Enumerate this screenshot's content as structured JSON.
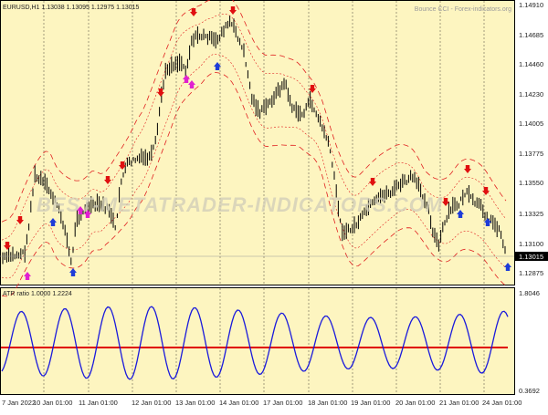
{
  "chart_header": {
    "symbol_info": "EURUSD,H1  1.13038 1.13095 1.12975 1.13015",
    "indicator_brand": "Bounce CCI - Forex-indicators.org",
    "watermark": "BEST-METATRADER-INDICATORS.COM"
  },
  "price_axis": {
    "labels": [
      "1.14910",
      "1.14685",
      "1.14460",
      "1.14230",
      "1.14005",
      "1.13775",
      "1.13550",
      "1.13325",
      "1.13100",
      "1.12875"
    ],
    "current_price": "1.13015"
  },
  "sub_window": {
    "title": "ATR ratio 1.0000 1.2224",
    "labels": [
      "1.8046",
      "0.3692"
    ]
  },
  "time_axis": {
    "labels": [
      "7 Jan 2022",
      "10 Jan 01:00",
      "11 Jan 01:00",
      "12 Jan 01:00",
      "13 Jan 01:00",
      "14 Jan 01:00",
      "17 Jan 01:00",
      "18 Jan 01:00",
      "19 Jan 01:00",
      "20 Jan 01:00",
      "21 Jan 01:00",
      "24 Jan 01:00"
    ]
  },
  "colors": {
    "chart_bg": "#fdf5c0",
    "candle": "#000000",
    "band": "#e02020",
    "atr_line": "#1a1adc",
    "ref_line": "#e00000",
    "arrow_up": "#1e3cd8",
    "arrow_up_alt": "#e020d0",
    "arrow_down": "#e01010",
    "grid": "#000000"
  }
}
